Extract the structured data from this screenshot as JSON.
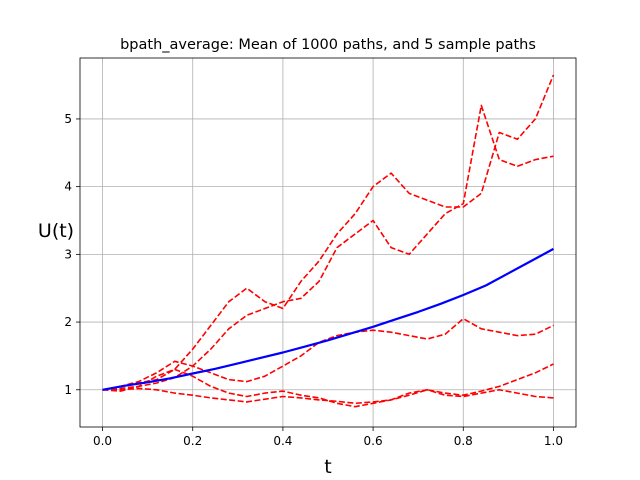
{
  "chart_data": {
    "type": "line",
    "title": "bpath_average: Mean of 1000 paths, and 5 sample paths",
    "xlabel": "t",
    "ylabel": "U(t)",
    "xlim": [
      -0.05,
      1.05
    ],
    "ylim": [
      0.45,
      5.9
    ],
    "xticks": [
      0.0,
      0.2,
      0.4,
      0.6,
      0.8,
      1.0
    ],
    "xtick_labels": [
      "0.0",
      "0.2",
      "0.4",
      "0.6",
      "0.8",
      "1.0"
    ],
    "yticks": [
      1,
      2,
      3,
      4,
      5
    ],
    "ytick_labels": [
      "1",
      "2",
      "3",
      "4",
      "5"
    ],
    "grid": true,
    "series": [
      {
        "color": "#0000ff",
        "style": "solid",
        "x": [
          0,
          0.05,
          0.1,
          0.15,
          0.2,
          0.25,
          0.3,
          0.35,
          0.4,
          0.45,
          0.5,
          0.55,
          0.6,
          0.65,
          0.7,
          0.75,
          0.8,
          0.85,
          0.9,
          0.95,
          1.0
        ],
        "y": [
          1.0,
          1.06,
          1.11,
          1.17,
          1.24,
          1.31,
          1.39,
          1.47,
          1.55,
          1.64,
          1.73,
          1.83,
          1.93,
          2.04,
          2.15,
          2.27,
          2.4,
          2.54,
          2.72,
          2.9,
          3.08
        ]
      },
      {
        "color": "#ff0000",
        "style": "dashed",
        "x": [
          0,
          0.04,
          0.08,
          0.12,
          0.16,
          0.2,
          0.24,
          0.28,
          0.32,
          0.36,
          0.4,
          0.44,
          0.48,
          0.52,
          0.56,
          0.6,
          0.64,
          0.68,
          0.72,
          0.76,
          0.8,
          0.84,
          0.88,
          0.92,
          0.96,
          1.0
        ],
        "y": [
          1.0,
          1.05,
          1.1,
          1.15,
          1.3,
          1.6,
          1.95,
          2.3,
          2.5,
          2.3,
          2.2,
          2.6,
          2.9,
          3.3,
          3.6,
          4.0,
          4.2,
          3.9,
          3.8,
          3.7,
          3.7,
          3.9,
          4.8,
          4.7,
          5.0,
          5.65
        ]
      },
      {
        "color": "#ff0000",
        "style": "dashed",
        "x": [
          0,
          0.04,
          0.08,
          0.12,
          0.16,
          0.2,
          0.24,
          0.28,
          0.32,
          0.36,
          0.4,
          0.44,
          0.48,
          0.52,
          0.56,
          0.6,
          0.64,
          0.68,
          0.72,
          0.76,
          0.8,
          0.84,
          0.88,
          0.92,
          0.96,
          1.0
        ],
        "y": [
          1.0,
          1.02,
          1.05,
          1.1,
          1.18,
          1.35,
          1.6,
          1.9,
          2.1,
          2.2,
          2.3,
          2.35,
          2.6,
          3.1,
          3.3,
          3.5,
          3.1,
          3.0,
          3.3,
          3.6,
          3.75,
          5.2,
          4.4,
          4.3,
          4.4,
          4.45
        ]
      },
      {
        "color": "#ff0000",
        "style": "dashed",
        "x": [
          0,
          0.04,
          0.08,
          0.12,
          0.16,
          0.2,
          0.24,
          0.28,
          0.32,
          0.36,
          0.4,
          0.44,
          0.48,
          0.52,
          0.56,
          0.6,
          0.64,
          0.68,
          0.72,
          0.76,
          0.8,
          0.84,
          0.88,
          0.92,
          0.96,
          1.0
        ],
        "y": [
          1.0,
          1.05,
          1.12,
          1.25,
          1.42,
          1.35,
          1.25,
          1.15,
          1.12,
          1.2,
          1.35,
          1.5,
          1.7,
          1.8,
          1.85,
          1.88,
          1.85,
          1.8,
          1.75,
          1.82,
          2.05,
          1.9,
          1.85,
          1.8,
          1.82,
          1.95
        ]
      },
      {
        "color": "#ff0000",
        "style": "dashed",
        "x": [
          0,
          0.04,
          0.08,
          0.12,
          0.16,
          0.2,
          0.24,
          0.28,
          0.32,
          0.36,
          0.4,
          0.44,
          0.48,
          0.52,
          0.56,
          0.6,
          0.64,
          0.68,
          0.72,
          0.76,
          0.8,
          0.84,
          0.88,
          0.92,
          0.96,
          1.0
        ],
        "y": [
          1.0,
          0.98,
          1.05,
          1.2,
          1.3,
          1.2,
          1.05,
          0.95,
          0.9,
          0.95,
          0.98,
          0.92,
          0.88,
          0.8,
          0.75,
          0.8,
          0.85,
          0.92,
          1.0,
          0.95,
          0.92,
          0.98,
          1.05,
          1.15,
          1.25,
          1.38
        ]
      },
      {
        "color": "#ff0000",
        "style": "dashed",
        "x": [
          0,
          0.04,
          0.08,
          0.12,
          0.16,
          0.2,
          0.24,
          0.28,
          0.32,
          0.36,
          0.4,
          0.44,
          0.48,
          0.52,
          0.56,
          0.6,
          0.64,
          0.68,
          0.72,
          0.76,
          0.8,
          0.84,
          0.88,
          0.92,
          0.96,
          1.0
        ],
        "y": [
          1.0,
          1.0,
          1.02,
          1.0,
          0.95,
          0.92,
          0.88,
          0.85,
          0.82,
          0.86,
          0.9,
          0.88,
          0.85,
          0.83,
          0.8,
          0.82,
          0.85,
          0.95,
          1.0,
          0.92,
          0.9,
          0.95,
          1.0,
          0.95,
          0.9,
          0.88
        ]
      }
    ]
  }
}
